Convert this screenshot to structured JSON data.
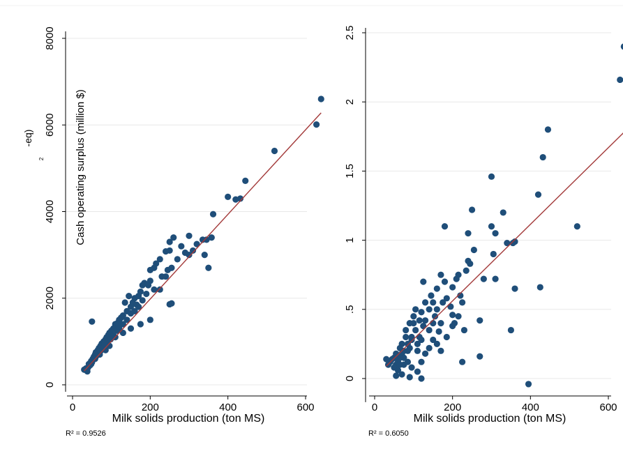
{
  "chart_data": [
    {
      "type": "scatter",
      "xlabel": "Milk solids production (ton MS)",
      "ylabel": "Cash operating surplus (million $)",
      "ylabel_fragment": "-eq)",
      "ylabel_fragment_sup": "2",
      "xlim": [
        0,
        650
      ],
      "ylim": [
        0,
        8000
      ],
      "xticks": [
        0,
        200,
        400,
        600
      ],
      "xtick_labels": [
        "0",
        "200",
        "400",
        "600"
      ],
      "yticks": [
        0,
        2000,
        4000,
        6000,
        8000
      ],
      "ytick_labels": [
        "0",
        "2000",
        "4000",
        "6000",
        "8000"
      ],
      "grid": true,
      "r2_text": "R² = 0.9526",
      "fit_line": [
        [
          30,
          320
        ],
        [
          640,
          6280
        ]
      ],
      "series": [
        {
          "points": [
            [
              640,
              6600
            ],
            [
              628,
              6010
            ],
            [
              520,
              5400
            ],
            [
              445,
              4710
            ],
            [
              432,
              4300
            ],
            [
              420,
              4280
            ],
            [
              400,
              4340
            ],
            [
              362,
              3940
            ],
            [
              358,
              3400
            ],
            [
              340,
              3000
            ],
            [
              350,
              2700
            ],
            [
              300,
              3440
            ],
            [
              310,
              3100
            ],
            [
              300,
              3000
            ],
            [
              280,
              3200
            ],
            [
              260,
              3400
            ],
            [
              250,
              3300
            ],
            [
              250,
              3100
            ],
            [
              240,
              3080
            ],
            [
              255,
              2700
            ],
            [
              245,
              2650
            ],
            [
              240,
              2500
            ],
            [
              225,
              2900
            ],
            [
              215,
              2800
            ],
            [
              210,
              2700
            ],
            [
              200,
              2650
            ],
            [
              200,
              2400
            ],
            [
              185,
              2350
            ],
            [
              180,
              2300
            ],
            [
              175,
              2150
            ],
            [
              170,
              2050
            ],
            [
              160,
              2000
            ],
            [
              150,
              1800
            ],
            [
              140,
              1700
            ],
            [
              130,
              1600
            ],
            [
              125,
              1550
            ],
            [
              120,
              1500
            ],
            [
              115,
              1420
            ],
            [
              110,
              1400
            ],
            [
              105,
              1300
            ],
            [
              100,
              1250
            ],
            [
              95,
              1200
            ],
            [
              92,
              1150
            ],
            [
              88,
              1100
            ],
            [
              85,
              1050
            ],
            [
              80,
              1000
            ],
            [
              75,
              950
            ],
            [
              72,
              900
            ],
            [
              68,
              850
            ],
            [
              65,
              800
            ],
            [
              60,
              750
            ],
            [
              58,
              700
            ],
            [
              55,
              650
            ],
            [
              52,
              600
            ],
            [
              48,
              550
            ],
            [
              45,
              500
            ],
            [
              40,
              400
            ],
            [
              35,
              380
            ],
            [
              30,
              350
            ],
            [
              38,
              310
            ],
            [
              50,
              1460
            ],
            [
              250,
              1860
            ],
            [
              255,
              1880
            ],
            [
              200,
              1500
            ],
            [
              175,
              1400
            ],
            [
              150,
              1300
            ],
            [
              130,
              1200
            ],
            [
              110,
              1100
            ],
            [
              95,
              900
            ],
            [
              85,
              800
            ],
            [
              70,
              700
            ],
            [
              55,
              600
            ],
            [
              160,
              1700
            ],
            [
              190,
              2100
            ],
            [
              210,
              2200
            ],
            [
              225,
              2200
            ],
            [
              140,
              1500
            ],
            [
              120,
              1300
            ],
            [
              100,
              1100
            ],
            [
              80,
              900
            ],
            [
              65,
              700
            ],
            [
              60,
              650
            ],
            [
              45,
              450
            ],
            [
              135,
              1900
            ],
            [
              145,
              2050
            ],
            [
              155,
              1900
            ],
            [
              165,
              1850
            ],
            [
              195,
              2300
            ],
            [
              230,
              2500
            ],
            [
              270,
              2900
            ],
            [
              290,
              3050
            ],
            [
              320,
              3250
            ],
            [
              335,
              3350
            ],
            [
              345,
              3350
            ],
            [
              115,
              1250
            ],
            [
              105,
              1150
            ],
            [
              90,
              1000
            ],
            [
              78,
              850
            ],
            [
              62,
              720
            ],
            [
              50,
              520
            ],
            [
              42,
              480
            ],
            [
              170,
              1800
            ],
            [
              180,
              1950
            ],
            [
              150,
              1650
            ],
            [
              130,
              1400
            ],
            [
              118,
              1350
            ],
            [
              98,
              1050
            ],
            [
              82,
              950
            ],
            [
              72,
              780
            ],
            [
              58,
              600
            ],
            [
              48,
              480
            ],
            [
              35,
              350
            ]
          ]
        }
      ]
    },
    {
      "type": "scatter",
      "xlabel": "Milk solids production (ton MS)",
      "ylabel": "",
      "xlim": [
        0,
        650
      ],
      "ylim": [
        -0.1,
        2.5
      ],
      "xticks": [
        0,
        200,
        400,
        600
      ],
      "xtick_labels": [
        "0",
        "200",
        "400",
        "600"
      ],
      "yticks": [
        0,
        0.5,
        1,
        1.5,
        2,
        2.5
      ],
      "ytick_labels": [
        "0",
        ".5",
        "1",
        "1.5",
        "2",
        "2.5"
      ],
      "grid": true,
      "r2_text": "R² = 0.6050",
      "fit_line": [
        [
          30,
          0.09
        ],
        [
          640,
          1.78
        ]
      ],
      "series": [
        {
          "points": [
            [
              640,
              2.4
            ],
            [
              630,
              2.16
            ],
            [
              520,
              1.1
            ],
            [
              445,
              1.8
            ],
            [
              432,
              1.6
            ],
            [
              420,
              1.33
            ],
            [
              425,
              0.66
            ],
            [
              395,
              -0.04
            ],
            [
              360,
              0.99
            ],
            [
              360,
              0.65
            ],
            [
              355,
              0.98
            ],
            [
              350,
              0.35
            ],
            [
              340,
              0.98
            ],
            [
              330,
              1.2
            ],
            [
              310,
              1.05
            ],
            [
              310,
              0.72
            ],
            [
              300,
              1.46
            ],
            [
              305,
              0.9
            ],
            [
              300,
              1.1
            ],
            [
              280,
              0.72
            ],
            [
              270,
              0.42
            ],
            [
              270,
              0.16
            ],
            [
              250,
              1.22
            ],
            [
              255,
              0.93
            ],
            [
              245,
              0.83
            ],
            [
              240,
              1.05
            ],
            [
              240,
              0.85
            ],
            [
              235,
              0.78
            ],
            [
              225,
              0.55
            ],
            [
              220,
              0.6
            ],
            [
              215,
              0.75
            ],
            [
              210,
              0.72
            ],
            [
              200,
              0.66
            ],
            [
              200,
              0.46
            ],
            [
              180,
              1.1
            ],
            [
              180,
              0.7
            ],
            [
              175,
              0.55
            ],
            [
              170,
              0.4
            ],
            [
              165,
              0.34
            ],
            [
              160,
              0.5
            ],
            [
              155,
              0.45
            ],
            [
              150,
              0.4
            ],
            [
              145,
              0.6
            ],
            [
              140,
              0.35
            ],
            [
              130,
              0.55
            ],
            [
              125,
              0.7
            ],
            [
              120,
              0.48
            ],
            [
              115,
              0.3
            ],
            [
              110,
              0.25
            ],
            [
              100,
              0.4
            ],
            [
              95,
              0.3
            ],
            [
              90,
              0.22
            ],
            [
              85,
              0.2
            ],
            [
              80,
              0.35
            ],
            [
              75,
              0.2
            ],
            [
              70,
              0.18
            ],
            [
              65,
              0.15
            ],
            [
              60,
              0.12
            ],
            [
              55,
              0.1
            ],
            [
              50,
              0.08
            ],
            [
              45,
              0.14
            ],
            [
              40,
              0.12
            ],
            [
              35,
              0.1
            ],
            [
              30,
              0.14
            ],
            [
              200,
              0.38
            ],
            [
              215,
              0.45
            ],
            [
              230,
              0.35
            ],
            [
              185,
              0.3
            ],
            [
              170,
              0.2
            ],
            [
              160,
              0.25
            ],
            [
              150,
              0.28
            ],
            [
              140,
              0.22
            ],
            [
              130,
              0.18
            ],
            [
              120,
              0.12
            ],
            [
              110,
              0.05
            ],
            [
              95,
              0.08
            ],
            [
              85,
              0.12
            ],
            [
              75,
              0.1
            ],
            [
              60,
              0.06
            ],
            [
              55,
              0.02
            ],
            [
              225,
              0.12
            ],
            [
              120,
              0.0
            ],
            [
              90,
              0.01
            ],
            [
              70,
              0.03
            ],
            [
              105,
              0.5
            ],
            [
              100,
              0.45
            ],
            [
              90,
              0.4
            ],
            [
              80,
              0.3
            ],
            [
              70,
              0.25
            ],
            [
              65,
              0.22
            ],
            [
              55,
              0.18
            ],
            [
              50,
              0.15
            ],
            [
              140,
              0.5
            ],
            [
              130,
              0.42
            ],
            [
              125,
              0.38
            ],
            [
              115,
              0.42
            ],
            [
              105,
              0.35
            ],
            [
              95,
              0.28
            ],
            [
              85,
              0.25
            ],
            [
              75,
              0.15
            ],
            [
              65,
              0.1
            ],
            [
              150,
              0.55
            ],
            [
              160,
              0.65
            ],
            [
              170,
              0.75
            ],
            [
              185,
              0.58
            ],
            [
              195,
              0.52
            ],
            [
              205,
              0.4
            ],
            [
              120,
              0.28
            ],
            [
              110,
              0.2
            ]
          ]
        }
      ]
    }
  ]
}
